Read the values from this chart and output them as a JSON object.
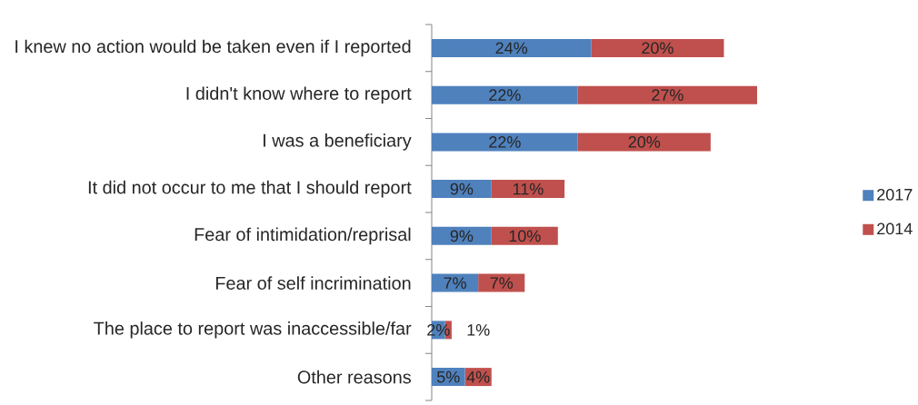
{
  "chart_data": {
    "type": "bar",
    "orientation": "horizontal",
    "stacked": true,
    "legend": "right",
    "tick_labels": "y",
    "categories": [
      "I knew no action would be taken even if I reported",
      "I didn't know where to report",
      "I was a beneficiary",
      "It did not occur to me that I should report",
      "Fear of intimidation/reprisal",
      "Fear of self incrimination",
      "The place to report was inaccessible/far",
      "Other reasons"
    ],
    "series": [
      {
        "name": "2017",
        "color": "#4f81bd",
        "values": [
          24,
          22,
          22,
          9,
          9,
          7,
          2,
          5
        ],
        "value_labels": [
          "24%",
          "22%",
          "22%",
          "9%",
          "9%",
          "7%",
          "2%",
          "5%"
        ]
      },
      {
        "name": "2014",
        "color": "#c0504d",
        "values": [
          20,
          27,
          20,
          11,
          10,
          7,
          1,
          4
        ],
        "value_labels": [
          "20%",
          "27%",
          "20%",
          "11%",
          "10%",
          "7%",
          "1%",
          "4%"
        ]
      }
    ]
  }
}
